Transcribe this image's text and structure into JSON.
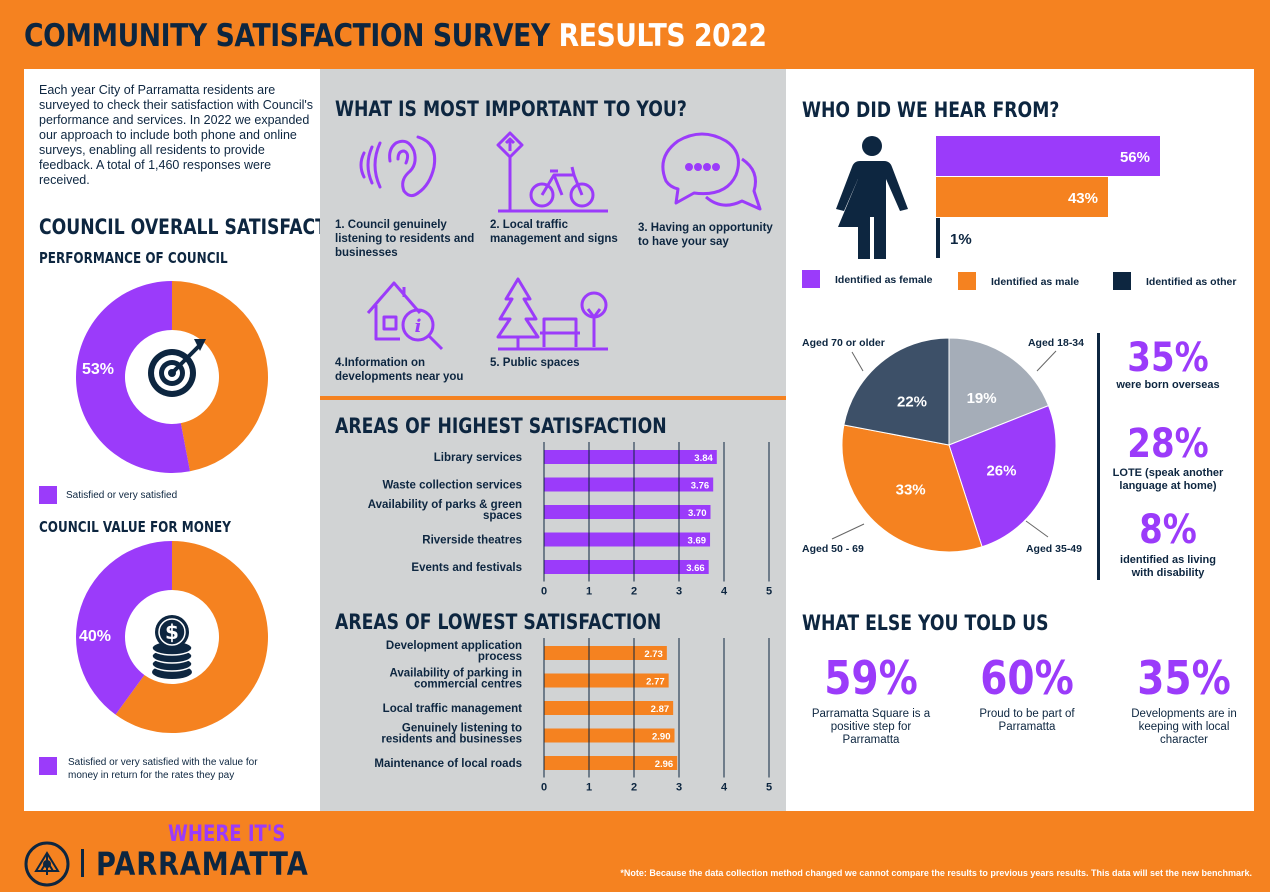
{
  "header": {
    "title_a": "COMMUNITY SATISFACTION SURVEY",
    "title_b": "RESULTS 2022"
  },
  "intro": "Each year City of Parramatta residents are surveyed to check their satisfaction with Council's performance and services. In 2022 we expanded our approach to include both phone and online surveys, enabling all residents to provide feedback. A total of 1,460 responses were received.",
  "satisfaction": {
    "heading": "COUNCIL OVERALL SATISFACTION",
    "perf_heading": "PERFORMANCE OF COUNCIL",
    "perf_label": "53%",
    "perf_legend": "Satisfied or very satisfied",
    "value_heading": "COUNCIL VALUE FOR MONEY",
    "value_label": "40%",
    "value_legend": "Satisfied or very satisfied with the value for money in return for the rates they pay"
  },
  "important": {
    "heading": "WHAT IS MOST IMPORTANT TO YOU?",
    "items": [
      "1. Council genuinely listening to residents and businesses",
      "2. Local traffic management and signs",
      "3. Having an opportunity to have your say",
      "4.Information on developments near you",
      "5. Public spaces"
    ]
  },
  "highest": {
    "heading": "AREAS OF HIGHEST SATISFACTION"
  },
  "lowest": {
    "heading": "AREAS OF LOWEST SATISFACTION"
  },
  "who": {
    "heading": "WHO DID WE HEAR FROM?",
    "legend": [
      "Identified as female",
      "Identified as male",
      "Identified as other"
    ],
    "age_labels": [
      "Aged 18-34",
      "Aged 35-49",
      "Aged 50 - 69",
      "Aged 70 or older"
    ]
  },
  "stats": [
    {
      "value": "35%",
      "label": "were born overseas"
    },
    {
      "value": "28%",
      "label": "LOTE (speak another language at home)"
    },
    {
      "value": "8%",
      "label": "identified as living with disability"
    }
  ],
  "told": {
    "heading": "WHAT ELSE YOU TOLD US",
    "items": [
      {
        "value": "59%",
        "label": "Parramatta Square is a positive step for Parramatta"
      },
      {
        "value": "60%",
        "label": "Proud to be part of Parramatta"
      },
      {
        "value": "35%",
        "label": "Developments are in keeping with local character"
      }
    ]
  },
  "footer": {
    "logo_top": "WHERE IT'S",
    "logo_bottom": "PARRAMATTA",
    "note": "*Note: Because the data collection method changed we cannot compare the results to previous years results. This data will set the new benchmark."
  },
  "colors": {
    "purple": "#9b3bfa",
    "orange": "#f58220",
    "navy": "#0d2640",
    "grey": "#a5adb8",
    "slate": "#3d5068"
  },
  "chart_data": [
    {
      "type": "pie",
      "title": "PERFORMANCE OF COUNCIL",
      "categories": [
        "Satisfied or very satisfied",
        "Other"
      ],
      "values": [
        53,
        47
      ],
      "labels": [
        "53%",
        ""
      ]
    },
    {
      "type": "pie",
      "title": "COUNCIL VALUE FOR MONEY",
      "categories": [
        "Satisfied or very satisfied",
        "Other"
      ],
      "values": [
        40,
        60
      ],
      "labels": [
        "40%",
        ""
      ]
    },
    {
      "type": "bar",
      "title": "AREAS OF HIGHEST SATISFACTION",
      "categories": [
        "Library services",
        "Waste collection services",
        "Availability of parks & green spaces",
        "Riverside theatres",
        "Events and festivals"
      ],
      "values": [
        3.84,
        3.76,
        3.7,
        3.69,
        3.66
      ],
      "value_labels": [
        "3.84",
        "3.76",
        "3.70",
        "3.69",
        "3.66"
      ],
      "xlim": [
        0,
        5
      ],
      "ticks": [
        "0",
        "1",
        "2",
        "3",
        "4",
        "5"
      ]
    },
    {
      "type": "bar",
      "title": "AREAS OF LOWEST SATISFACTION",
      "categories": [
        "Development application process",
        "Availability of parking in commercial centres",
        "Local traffic management",
        "Genuinely listening to residents and businesses",
        "Maintenance of local roads"
      ],
      "values": [
        2.73,
        2.77,
        2.87,
        2.9,
        2.96
      ],
      "value_labels": [
        "2.73",
        "2.77",
        "2.87",
        "2.90",
        "2.96"
      ],
      "xlim": [
        0,
        5
      ],
      "ticks": [
        "0",
        "1",
        "2",
        "3",
        "4",
        "5"
      ]
    },
    {
      "type": "bar",
      "title": "WHO DID WE HEAR FROM?",
      "categories": [
        "Identified as female",
        "Identified as male",
        "Identified as other"
      ],
      "values": [
        56,
        43,
        1
      ],
      "value_labels": [
        "56%",
        "43%",
        "1%"
      ]
    },
    {
      "type": "pie",
      "categories": [
        "Aged 18-34",
        "Aged 35-49",
        "Aged 50 - 69",
        "Aged 70 or older"
      ],
      "values": [
        19,
        26,
        33,
        22
      ],
      "labels": [
        "19%",
        "26%",
        "33%",
        "22%"
      ]
    }
  ]
}
